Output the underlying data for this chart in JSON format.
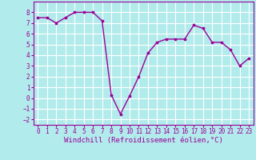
{
  "x": [
    0,
    1,
    2,
    3,
    4,
    5,
    6,
    7,
    8,
    9,
    10,
    11,
    12,
    13,
    14,
    15,
    16,
    17,
    18,
    19,
    20,
    21,
    22,
    23
  ],
  "y": [
    7.5,
    7.5,
    7.0,
    7.5,
    8.0,
    8.0,
    8.0,
    7.2,
    0.3,
    -1.5,
    0.2,
    2.0,
    4.2,
    5.2,
    5.5,
    5.5,
    5.5,
    6.8,
    6.5,
    5.2,
    5.2,
    4.5,
    3.0,
    3.7
  ],
  "line_color": "#990099",
  "marker": "o",
  "markersize": 2.2,
  "linewidth": 1.0,
  "xlabel": "Windchill (Refroidissement éolien,°C)",
  "xlim": [
    -0.5,
    23.5
  ],
  "ylim": [
    -2.5,
    9.0
  ],
  "yticks": [
    -2,
    -1,
    0,
    1,
    2,
    3,
    4,
    5,
    6,
    7,
    8
  ],
  "xticks": [
    0,
    1,
    2,
    3,
    4,
    5,
    6,
    7,
    8,
    9,
    10,
    11,
    12,
    13,
    14,
    15,
    16,
    17,
    18,
    19,
    20,
    21,
    22,
    23
  ],
  "background_color": "#b2ebeb",
  "grid_color": "#aadddd",
  "tick_labelsize": 5.5,
  "xlabel_fontsize": 6.5
}
